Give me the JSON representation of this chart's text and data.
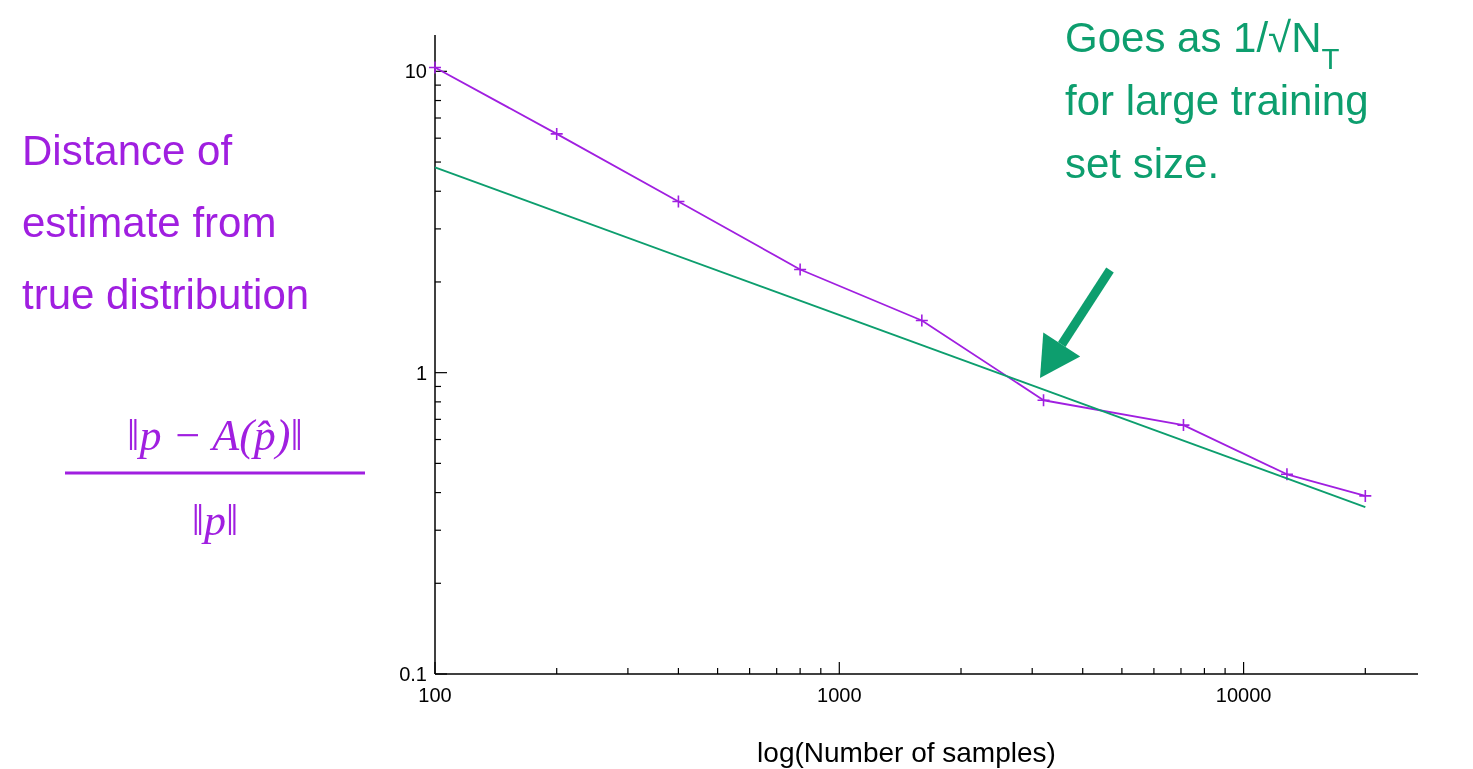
{
  "chart_data": {
    "type": "line",
    "xlabel": "log(Number of samples)",
    "ylabel": "Distance of estimate from true distribution",
    "log": "xy",
    "grid": false,
    "xlim": [
      100,
      27000
    ],
    "ylim": [
      0.1,
      13.2
    ],
    "xticks": [
      100,
      {
        "value": 200,
        "label": null
      },
      {
        "value": 300,
        "label": null
      },
      {
        "value": 400,
        "label": null
      },
      {
        "value": 500,
        "label": null
      },
      {
        "value": 600,
        "label": null
      },
      {
        "value": 700,
        "label": null
      },
      {
        "value": 800,
        "label": null
      },
      {
        "value": 900,
        "label": null
      },
      1000,
      {
        "value": 2000,
        "label": null
      },
      {
        "value": 3000,
        "label": null
      },
      {
        "value": 4000,
        "label": null
      },
      {
        "value": 5000,
        "label": null
      },
      {
        "value": 6000,
        "label": null
      },
      {
        "value": 7000,
        "label": null
      },
      {
        "value": 8000,
        "label": null
      },
      {
        "value": 9000,
        "label": null
      },
      10000,
      {
        "value": 20000,
        "label": null
      }
    ],
    "yticks": [
      0.1,
      {
        "value": 0.2,
        "label": null
      },
      {
        "value": 0.3,
        "label": null
      },
      {
        "value": 0.4,
        "label": null
      },
      {
        "value": 0.5,
        "label": null
      },
      {
        "value": 0.6,
        "label": null
      },
      {
        "value": 0.7,
        "label": null
      },
      {
        "value": 0.8,
        "label": null
      },
      {
        "value": 0.9,
        "label": null
      },
      1,
      {
        "value": 2,
        "label": null
      },
      {
        "value": 3,
        "label": null
      },
      {
        "value": 4,
        "label": null
      },
      {
        "value": 5,
        "label": null
      },
      {
        "value": 6,
        "label": null
      },
      {
        "value": 7,
        "label": null
      },
      {
        "value": 8,
        "label": null
      },
      {
        "value": 9,
        "label": null
      },
      10
    ],
    "series": [
      {
        "color": "#a01fe0",
        "marker": "cross",
        "x": [
          100,
          200,
          400,
          800,
          1600,
          3200,
          7100,
          12800,
          20000
        ],
        "values": [
          10.3,
          6.2,
          3.7,
          2.2,
          1.49,
          0.81,
          0.67,
          0.46,
          0.39
        ]
      },
      {
        "color": "#0d9e6e",
        "marker": "none",
        "x": [
          100,
          20000
        ],
        "values": [
          4.8,
          0.358
        ]
      }
    ],
    "annotations": [
      "‖p − A(p̂)‖",
      "‖p‖",
      "Goes as 1/√N$_{T}$ for large training set size."
    ]
  }
}
